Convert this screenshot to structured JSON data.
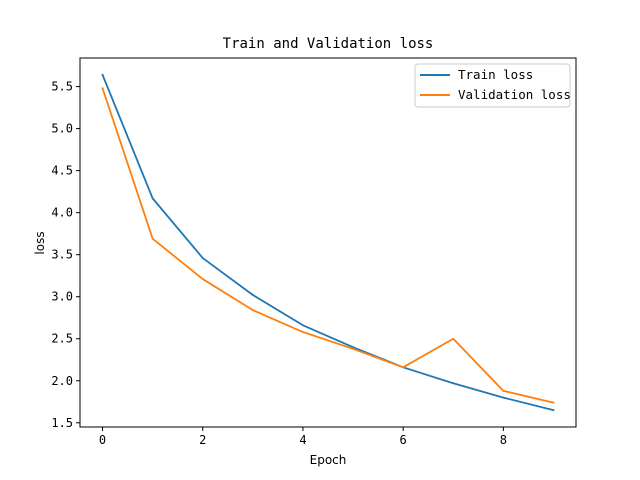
{
  "chart_data": {
    "type": "line",
    "title": "Train and Validation loss",
    "xlabel": "Epoch",
    "ylabel": "loss",
    "xlim": [
      -0.45,
      9.45
    ],
    "ylim": [
      1.45,
      5.84
    ],
    "xticks": [
      0,
      2,
      4,
      6,
      8
    ],
    "xtick_labels": [
      "0",
      "2",
      "4",
      "6",
      "8"
    ],
    "yticks": [
      1.5,
      2.0,
      2.5,
      3.0,
      3.5,
      4.0,
      4.5,
      5.0,
      5.5
    ],
    "ytick_labels": [
      "1.5",
      "2.0",
      "2.5",
      "3.0",
      "3.5",
      "4.0",
      "4.5",
      "5.0",
      "5.5"
    ],
    "grid": false,
    "legend_position": "top-right",
    "x": [
      0,
      1,
      2,
      3,
      4,
      5,
      6,
      7,
      8,
      9
    ],
    "series": [
      {
        "name": "Train loss",
        "color": "#1f77b4",
        "values": [
          5.64,
          4.17,
          3.46,
          3.02,
          2.66,
          2.4,
          2.16,
          1.97,
          1.8,
          1.65
        ]
      },
      {
        "name": "Validation loss",
        "color": "#ff7f0e",
        "values": [
          5.48,
          3.69,
          3.21,
          2.84,
          2.58,
          2.38,
          2.16,
          2.5,
          1.88,
          1.74
        ]
      }
    ]
  }
}
